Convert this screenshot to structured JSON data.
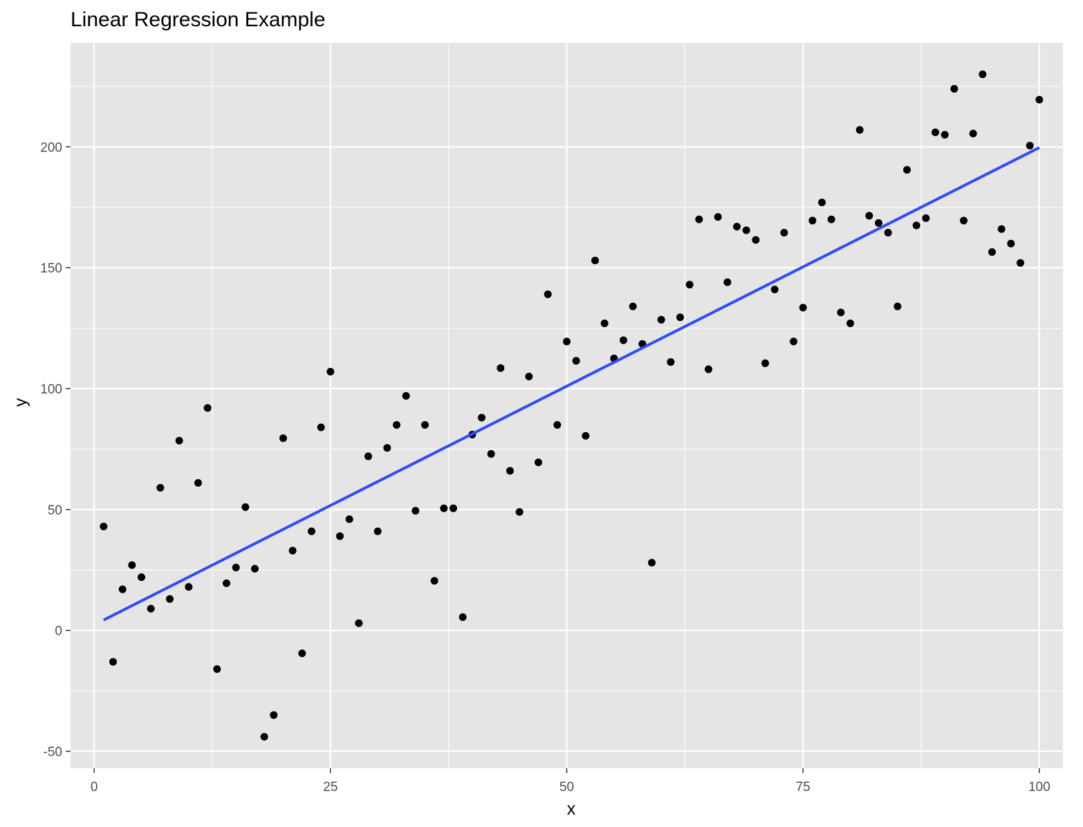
{
  "chart_data": {
    "type": "scatter",
    "title": "Linear Regression Example",
    "xlabel": "x",
    "ylabel": "y",
    "xlim": [
      -2.5,
      102.5
    ],
    "ylim": [
      -57,
      243
    ],
    "x_ticks": [
      0,
      25,
      50,
      75,
      100
    ],
    "y_ticks": [
      -50,
      0,
      50,
      100,
      150,
      200
    ],
    "x_tick_labels": [
      "0",
      "25",
      "50",
      "75",
      "100"
    ],
    "y_tick_labels": [
      "-50",
      "0",
      "50",
      "100",
      "150",
      "200"
    ],
    "grid": true,
    "legend": "none",
    "colors": {
      "panel_background": "#e5e5e5",
      "grid": "#ffffff",
      "points": "#000000",
      "fit_line": "#2d4cff"
    },
    "series": [
      {
        "kind": "points",
        "x": [
          1,
          2,
          3,
          4,
          5,
          6,
          7,
          8,
          9,
          10,
          11,
          12,
          13,
          14,
          15,
          16,
          17,
          18,
          19,
          20,
          21,
          22,
          23,
          24,
          25,
          26,
          27,
          28,
          29,
          30,
          31,
          32,
          33,
          34,
          35,
          36,
          37,
          38,
          39,
          40,
          41,
          42,
          43,
          44,
          45,
          46,
          47,
          48,
          49,
          50,
          51,
          52,
          53,
          54,
          55,
          56,
          57,
          58,
          59,
          60,
          61,
          62,
          63,
          64,
          65,
          66,
          67,
          68,
          69,
          70,
          71,
          72,
          73,
          74,
          75,
          76,
          77,
          78,
          79,
          80,
          81,
          82,
          83,
          84,
          85,
          86,
          87,
          88,
          89,
          90,
          91,
          92,
          93,
          94,
          95,
          96,
          97,
          98,
          99,
          100
        ],
        "y": [
          43,
          -13,
          17,
          27,
          22,
          9,
          59,
          13,
          78.5,
          18,
          61,
          92,
          -16,
          19.5,
          26,
          51,
          25.5,
          -44,
          -35,
          79.5,
          33,
          -9.5,
          41,
          84,
          107,
          39,
          46,
          3,
          72,
          41,
          75.5,
          85,
          97,
          49.5,
          85,
          20.5,
          50.5,
          50.5,
          5.5,
          81,
          88,
          73,
          108.5,
          66,
          49,
          105,
          69.5,
          139,
          85,
          119.5,
          111.5,
          80.5,
          153,
          127,
          112.5,
          120,
          134,
          118.5,
          28,
          128.5,
          111,
          129.5,
          143,
          170,
          108,
          171,
          144,
          167,
          165.5,
          161.5,
          110.5,
          141,
          164.5,
          119.5,
          133.5,
          169.5,
          177,
          170,
          131.5,
          127,
          207,
          171.5,
          168.5,
          164.5,
          134,
          190.5,
          167.5,
          170.5,
          206,
          205,
          224,
          169.5,
          205.5,
          230,
          156.5,
          166,
          160,
          152,
          200.5,
          219.5
        ]
      },
      {
        "kind": "fit_line",
        "x": [
          1,
          100
        ],
        "y": [
          4.3,
          199.7
        ]
      }
    ]
  }
}
